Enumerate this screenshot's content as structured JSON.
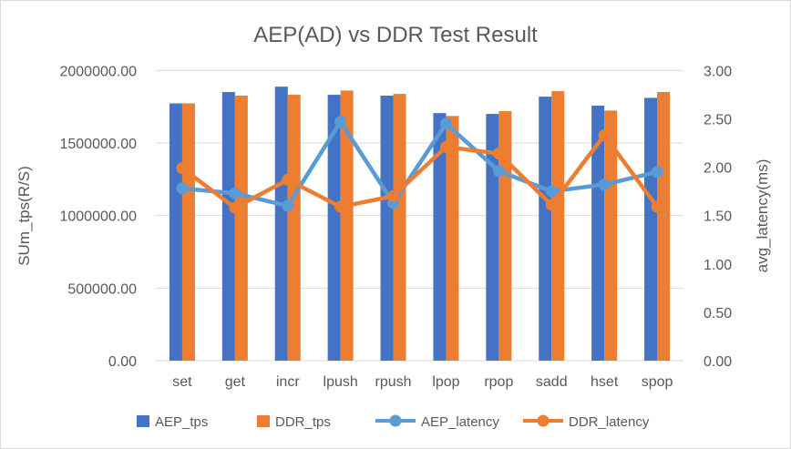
{
  "chart_data": {
    "type": "bar+line",
    "title": "AEP(AD) vs DDR Test Result",
    "ylabel": "SUm_tps(R/S)",
    "y2label": "avg_latency(ms)",
    "ylim": [
      0,
      2000000
    ],
    "y2lim": [
      0,
      3
    ],
    "yticks": [
      "0.00",
      "500000.00",
      "1000000.00",
      "1500000.00",
      "2000000.00"
    ],
    "y2ticks": [
      "0.00",
      "0.50",
      "1.00",
      "1.50",
      "2.00",
      "2.50",
      "3.00"
    ],
    "grid": true,
    "legend": "bottom",
    "categories": [
      "set",
      "get",
      "incr",
      "lpush",
      "rpush",
      "lpop",
      "rpop",
      "sadd",
      "hset",
      "spop"
    ],
    "series": [
      {
        "name": "AEP_tps",
        "type": "bar",
        "axis": "left",
        "color": "#4472C4",
        "values": [
          1773000,
          1851000,
          1888000,
          1832000,
          1826000,
          1706000,
          1700000,
          1819000,
          1757000,
          1811000
        ]
      },
      {
        "name": "DDR_tps",
        "type": "bar",
        "axis": "left",
        "color": "#ED7D31",
        "values": [
          1773000,
          1826000,
          1832000,
          1861000,
          1838000,
          1686000,
          1719000,
          1857000,
          1723000,
          1851000
        ]
      },
      {
        "name": "AEP_latency",
        "type": "line",
        "axis": "right",
        "color": "#5B9BD5",
        "values": [
          1.78,
          1.73,
          1.6,
          2.47,
          1.63,
          2.45,
          1.96,
          1.75,
          1.82,
          1.95
        ]
      },
      {
        "name": "DDR_latency",
        "type": "line",
        "axis": "right",
        "color": "#ED7D31",
        "values": [
          1.99,
          1.58,
          1.87,
          1.59,
          1.7,
          2.21,
          2.14,
          1.61,
          2.33,
          1.59
        ]
      }
    ]
  }
}
